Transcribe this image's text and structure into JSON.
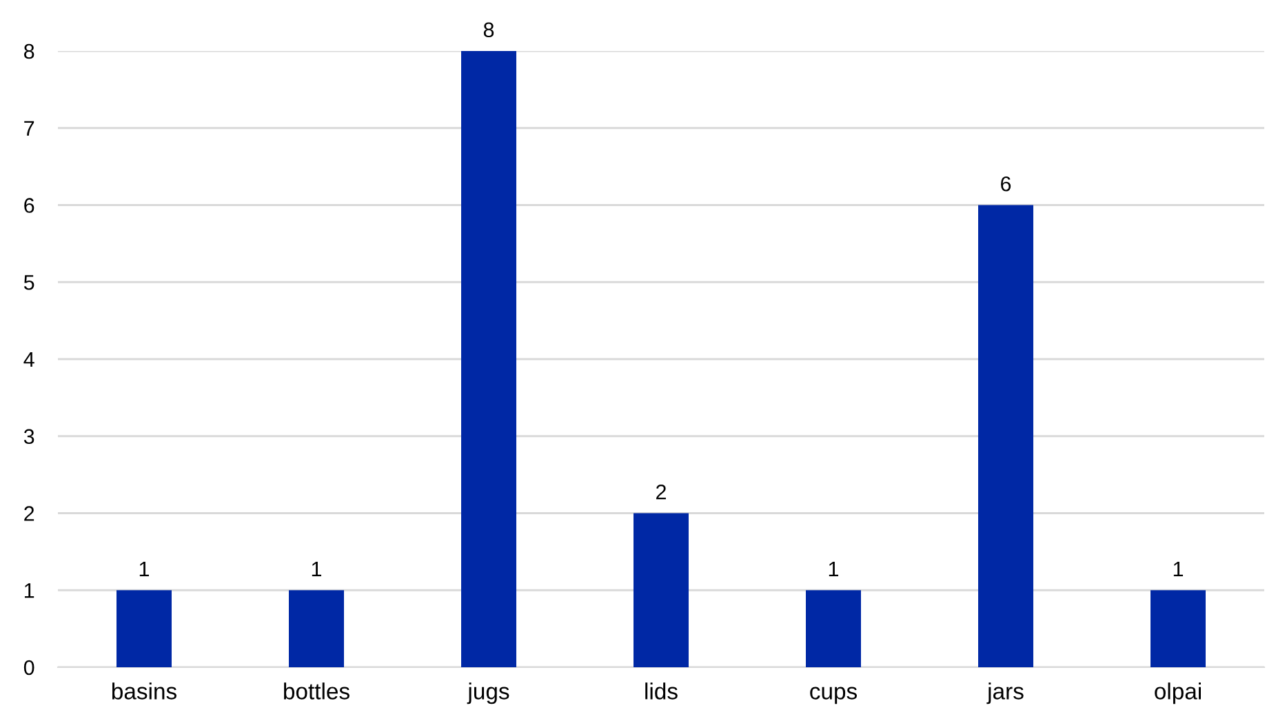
{
  "chart_data": {
    "type": "bar",
    "categories": [
      "basins",
      "bottles",
      "jugs",
      "lids",
      "cups",
      "jars",
      "olpai"
    ],
    "values": [
      1,
      1,
      8,
      2,
      1,
      6,
      1
    ],
    "color": "#0028a5",
    "ylim": [
      0,
      8
    ],
    "yticks": [
      0,
      1,
      2,
      3,
      4,
      5,
      6,
      7,
      8
    ],
    "grid": "y",
    "data_labels": true,
    "legend": false
  }
}
